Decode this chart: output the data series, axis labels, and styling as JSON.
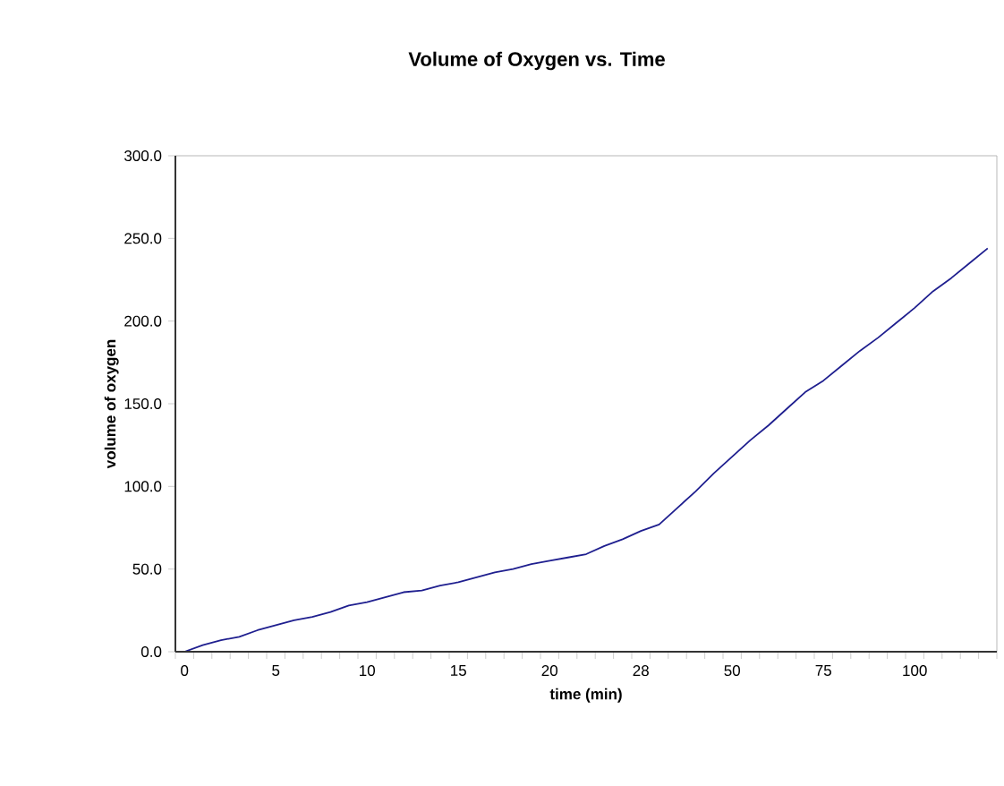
{
  "chart_data": {
    "type": "line",
    "title": "Volume of Oxygen vs. Time",
    "xlabel": "time (min)",
    "ylabel": "volume of oxygen",
    "categories": [
      "0",
      null,
      null,
      null,
      null,
      "5",
      null,
      null,
      null,
      null,
      "10",
      null,
      null,
      null,
      null,
      "15",
      null,
      null,
      null,
      null,
      "20",
      null,
      null,
      null,
      null,
      "28",
      null,
      null,
      null,
      null,
      "50",
      null,
      null,
      null,
      null,
      "75",
      null,
      null,
      null,
      null,
      "100",
      null,
      null,
      null,
      null
    ],
    "series": [
      {
        "color": "#1f1f8f",
        "values": [
          0,
          4,
          7,
          9,
          13,
          16,
          19,
          21,
          24,
          28,
          30,
          33,
          36,
          37,
          40,
          42,
          45,
          48,
          50,
          53,
          55,
          57,
          59,
          64,
          68,
          73,
          77,
          87,
          97,
          108,
          118,
          128,
          137,
          147,
          157,
          164,
          173,
          182,
          190,
          199,
          208,
          218,
          226,
          235,
          244
        ]
      }
    ],
    "ylim": [
      0,
      300
    ],
    "yticks": [
      {
        "value": 0,
        "label": "0.0"
      },
      {
        "value": 50,
        "label": "50.0"
      },
      {
        "value": 100,
        "label": "100.0"
      },
      {
        "value": 150,
        "label": "150.0"
      },
      {
        "value": 200,
        "label": "200.0"
      },
      {
        "value": 250,
        "label": "250.0"
      },
      {
        "value": 300,
        "label": "300.0"
      }
    ],
    "marker": "none",
    "line_style": "solid"
  }
}
